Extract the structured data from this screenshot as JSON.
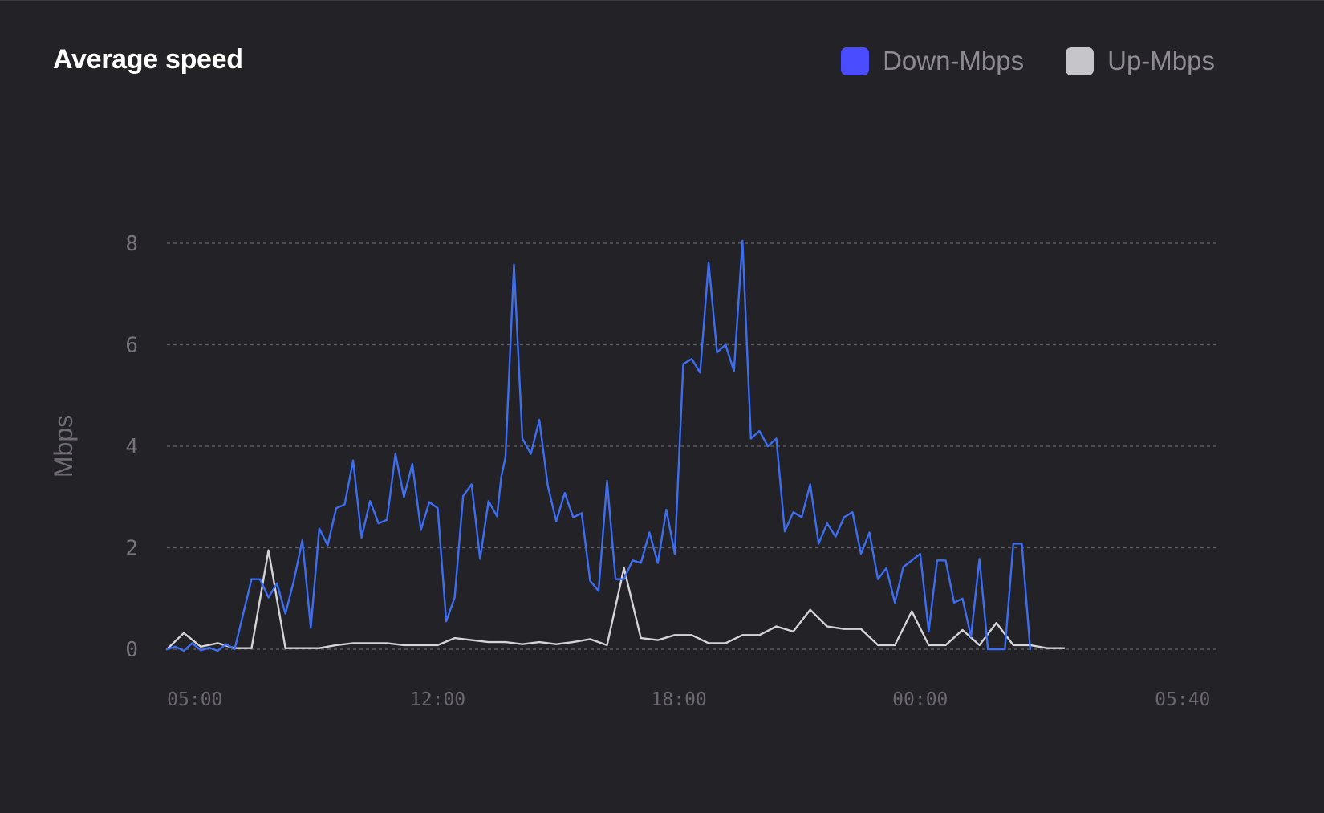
{
  "card": {
    "title": "Average speed"
  },
  "legend": [
    {
      "label": "Down-Mbps",
      "color": "#4a4cff"
    },
    {
      "label": "Up-Mbps",
      "color": "#c6c5ca"
    }
  ],
  "chart_data": {
    "type": "line",
    "title": "Average speed",
    "xlabel": "",
    "ylabel": "Mbps",
    "ylim": [
      0,
      8
    ],
    "yticks": [
      0,
      2,
      4,
      6,
      8
    ],
    "xlim": [
      0,
      124
    ],
    "xticks": [
      {
        "label": "05:00",
        "x": 3.3
      },
      {
        "label": "12:00",
        "x": 32
      },
      {
        "label": "18:00",
        "x": 60.5
      },
      {
        "label": "00:00",
        "x": 89
      },
      {
        "label": "05:40",
        "x": 120
      }
    ],
    "grid": true,
    "legend_position": "top-right",
    "series": [
      {
        "name": "Down-Mbps",
        "color": "#3d6df0",
        "points": [
          [
            0,
            0
          ],
          [
            1,
            0.05
          ],
          [
            2,
            -0.03
          ],
          [
            3,
            0.12
          ],
          [
            4,
            -0.02
          ],
          [
            5,
            0.03
          ],
          [
            6,
            -0.03
          ],
          [
            7,
            0.1
          ],
          [
            8,
            0
          ],
          [
            10,
            1.38
          ],
          [
            11,
            1.38
          ],
          [
            12,
            1.02
          ],
          [
            13,
            1.3
          ],
          [
            14,
            0.7
          ],
          [
            15,
            1.35
          ],
          [
            16,
            2.15
          ],
          [
            17,
            0.42
          ],
          [
            18,
            2.38
          ],
          [
            19,
            2.05
          ],
          [
            20,
            2.78
          ],
          [
            21,
            2.85
          ],
          [
            22,
            3.72
          ],
          [
            23,
            2.2
          ],
          [
            24,
            2.92
          ],
          [
            25,
            2.48
          ],
          [
            26,
            2.55
          ],
          [
            27,
            3.85
          ],
          [
            28,
            3.0
          ],
          [
            29,
            3.65
          ],
          [
            30,
            2.35
          ],
          [
            31,
            2.9
          ],
          [
            32,
            2.78
          ],
          [
            33,
            0.55
          ],
          [
            34,
            1.02
          ],
          [
            35,
            3.02
          ],
          [
            36,
            3.25
          ],
          [
            37,
            1.78
          ],
          [
            38,
            2.92
          ],
          [
            39,
            2.62
          ],
          [
            39.5,
            3.4
          ],
          [
            40,
            3.78
          ],
          [
            41,
            7.58
          ],
          [
            42,
            4.15
          ],
          [
            43,
            3.85
          ],
          [
            44,
            4.52
          ],
          [
            45,
            3.22
          ],
          [
            46,
            2.52
          ],
          [
            47,
            3.08
          ],
          [
            48,
            2.6
          ],
          [
            49,
            2.68
          ],
          [
            50,
            1.35
          ],
          [
            51,
            1.15
          ],
          [
            52,
            3.32
          ],
          [
            53,
            1.38
          ],
          [
            54,
            1.38
          ],
          [
            55,
            1.75
          ],
          [
            56,
            1.7
          ],
          [
            57,
            2.3
          ],
          [
            58,
            1.7
          ],
          [
            59,
            2.75
          ],
          [
            60,
            1.88
          ],
          [
            61,
            5.62
          ],
          [
            62,
            5.72
          ],
          [
            63,
            5.45
          ],
          [
            64,
            7.62
          ],
          [
            65,
            5.85
          ],
          [
            66,
            6.0
          ],
          [
            67,
            5.48
          ],
          [
            68,
            8.05
          ],
          [
            69,
            4.15
          ],
          [
            70,
            4.3
          ],
          [
            71,
            4.0
          ],
          [
            72,
            4.15
          ],
          [
            73,
            2.32
          ],
          [
            74,
            2.7
          ],
          [
            75,
            2.6
          ],
          [
            76,
            3.25
          ],
          [
            77,
            2.08
          ],
          [
            78,
            2.48
          ],
          [
            79,
            2.22
          ],
          [
            80,
            2.6
          ],
          [
            81,
            2.7
          ],
          [
            82,
            1.88
          ],
          [
            83,
            2.3
          ],
          [
            84,
            1.38
          ],
          [
            85,
            1.6
          ],
          [
            86,
            0.92
          ],
          [
            87,
            1.62
          ],
          [
            88,
            1.75
          ],
          [
            89,
            1.88
          ],
          [
            90,
            0.35
          ],
          [
            91,
            1.75
          ],
          [
            92,
            1.75
          ],
          [
            93,
            0.92
          ],
          [
            94,
            1.0
          ],
          [
            95,
            0.25
          ],
          [
            96,
            1.78
          ],
          [
            97,
            0
          ],
          [
            98,
            0
          ],
          [
            99,
            0
          ],
          [
            100,
            2.08
          ],
          [
            101,
            2.08
          ],
          [
            102,
            0
          ]
        ]
      },
      {
        "name": "Up-Mbps",
        "color": "#d4d3d8",
        "points": [
          [
            0,
            0
          ],
          [
            2,
            0.32
          ],
          [
            4,
            0.05
          ],
          [
            6,
            0.12
          ],
          [
            8,
            0.02
          ],
          [
            10,
            0.02
          ],
          [
            12,
            1.95
          ],
          [
            14,
            0.02
          ],
          [
            16,
            0.02
          ],
          [
            18,
            0.02
          ],
          [
            20,
            0.08
          ],
          [
            22,
            0.12
          ],
          [
            24,
            0.12
          ],
          [
            26,
            0.12
          ],
          [
            28,
            0.08
          ],
          [
            30,
            0.08
          ],
          [
            32,
            0.08
          ],
          [
            34,
            0.22
          ],
          [
            36,
            0.18
          ],
          [
            38,
            0.14
          ],
          [
            40,
            0.14
          ],
          [
            42,
            0.1
          ],
          [
            44,
            0.14
          ],
          [
            46,
            0.1
          ],
          [
            48,
            0.14
          ],
          [
            50,
            0.2
          ],
          [
            52,
            0.08
          ],
          [
            54,
            1.6
          ],
          [
            56,
            0.22
          ],
          [
            58,
            0.18
          ],
          [
            60,
            0.28
          ],
          [
            62,
            0.28
          ],
          [
            64,
            0.12
          ],
          [
            66,
            0.12
          ],
          [
            68,
            0.28
          ],
          [
            70,
            0.28
          ],
          [
            72,
            0.45
          ],
          [
            74,
            0.35
          ],
          [
            76,
            0.78
          ],
          [
            78,
            0.45
          ],
          [
            80,
            0.4
          ],
          [
            82,
            0.4
          ],
          [
            84,
            0.08
          ],
          [
            86,
            0.08
          ],
          [
            88,
            0.75
          ],
          [
            90,
            0.08
          ],
          [
            92,
            0.08
          ],
          [
            94,
            0.38
          ],
          [
            96,
            0.08
          ],
          [
            98,
            0.52
          ],
          [
            100,
            0.08
          ],
          [
            102,
            0.08
          ],
          [
            104,
            0.02
          ],
          [
            106,
            0.02
          ]
        ]
      }
    ]
  }
}
